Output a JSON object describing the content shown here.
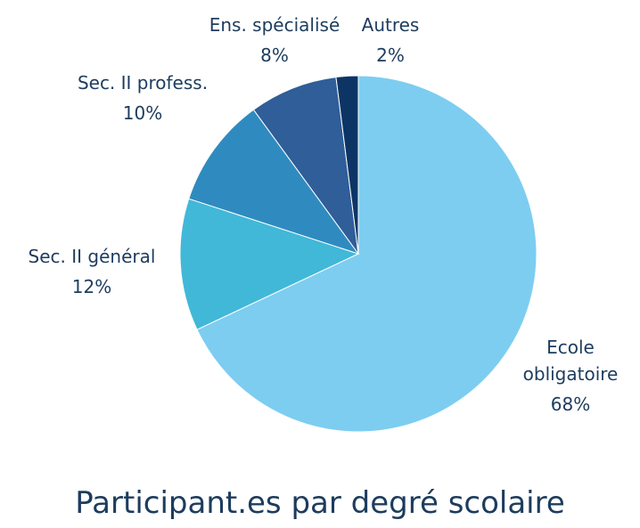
{
  "chart_data": {
    "type": "pie",
    "title": "Participant.es par degré scolaire",
    "categories": [
      "Ecole obligatoire",
      "Sec. II général",
      "Sec. II profess.",
      "Ens. spécialisé",
      "Autres"
    ],
    "values": [
      68,
      12,
      10,
      8,
      2
    ],
    "value_labels": [
      "68%",
      "12%",
      "10%",
      "8%",
      "2%"
    ],
    "colors": [
      "#7dcdf1",
      "#41b8d8",
      "#2f8bbf",
      "#2f5e98",
      "#0c3566"
    ]
  }
}
